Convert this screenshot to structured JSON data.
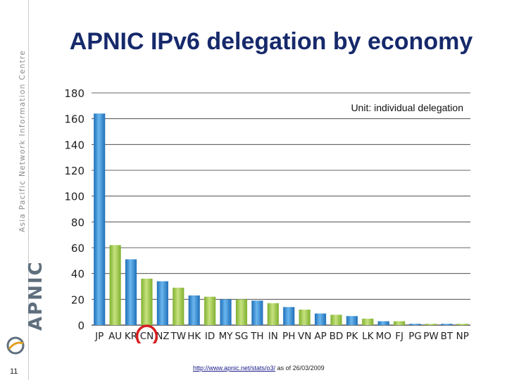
{
  "slide": {
    "title": "APNIC IPv6 delegation by economy",
    "side_text": "Asia Pacific Network Information Centre",
    "brand": "APNIC",
    "page_number": "11",
    "source_link": "http://www.apnic.net/stats/o3/",
    "source_note": "as of 26/03/2009"
  },
  "colors": {
    "blue": "#2f8fd6",
    "green": "#9fcc45",
    "highlight": "#d62020",
    "title": "#16296b"
  },
  "chart_data": {
    "type": "bar",
    "title": "",
    "annotation": "Unit: individual delegation",
    "xlabel": "",
    "ylabel": "",
    "ylim": [
      0,
      180
    ],
    "yticks": [
      0,
      20,
      40,
      60,
      80,
      100,
      120,
      140,
      160,
      180
    ],
    "grid": true,
    "categories": [
      "JP",
      "AU",
      "KR",
      "CN",
      "NZ",
      "TW",
      "HK",
      "ID",
      "MY",
      "SG",
      "TH",
      "IN",
      "PH",
      "VN",
      "AP",
      "BD",
      "PK",
      "LK",
      "MO",
      "FJ",
      "PG",
      "PW",
      "BT",
      "NP"
    ],
    "values": [
      164,
      62,
      51,
      36,
      34,
      29,
      23,
      22,
      20,
      20,
      19,
      17,
      14,
      12,
      9,
      8,
      7,
      5,
      3,
      3,
      1,
      1,
      1,
      1
    ],
    "highlighted_category": "CN"
  }
}
